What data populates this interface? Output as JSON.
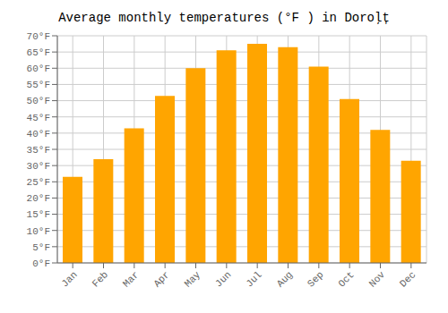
{
  "chart_data": {
    "type": "bar",
    "title": "Average monthly temperatures (°F ) in Doroļț",
    "categories": [
      "Jan",
      "Feb",
      "Mar",
      "Apr",
      "May",
      "Jun",
      "Jul",
      "Aug",
      "Sep",
      "Oct",
      "Nov",
      "Dec"
    ],
    "values": [
      26.5,
      32.0,
      41.5,
      51.5,
      60.0,
      65.5,
      67.5,
      66.5,
      60.5,
      50.5,
      41.0,
      31.5
    ],
    "color": "#FFA500",
    "ylim": [
      0,
      70
    ],
    "yticks": [
      {
        "value": 0,
        "label": "0°F"
      },
      {
        "value": 5,
        "label": "5°F"
      },
      {
        "value": 10,
        "label": "10°F"
      },
      {
        "value": 15,
        "label": "15°F"
      },
      {
        "value": 20,
        "label": "20°F"
      },
      {
        "value": 25,
        "label": "25°F"
      },
      {
        "value": 30,
        "label": "30°F"
      },
      {
        "value": 35,
        "label": "35°F"
      },
      {
        "value": 40,
        "label": "40°F"
      },
      {
        "value": 45,
        "label": "45°F"
      },
      {
        "value": 50,
        "label": "50°F"
      },
      {
        "value": 55,
        "label": "55°F"
      },
      {
        "value": 60,
        "label": "60°F"
      },
      {
        "value": 65,
        "label": "65°F"
      },
      {
        "value": 70,
        "label": "70°F"
      }
    ],
    "grid": true
  }
}
